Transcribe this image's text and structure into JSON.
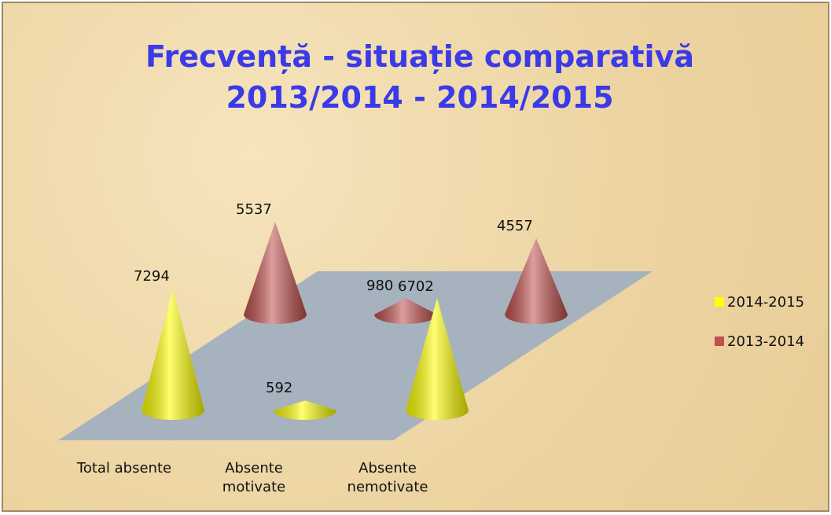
{
  "chart_data": {
    "type": "cone",
    "title": "Frecvență - situație comparativă 2013/2014 - 2014/2015",
    "categories": [
      "Total absente",
      "Absente motivate",
      "Absente nemotivate"
    ],
    "series": [
      {
        "name": "2014-2015",
        "color": "#ffff00",
        "values": [
          7294,
          592,
          6702
        ]
      },
      {
        "name": "2013-2014",
        "color": "#c0504d",
        "values": [
          5537,
          980,
          4557
        ]
      }
    ],
    "legend": "right"
  }
}
